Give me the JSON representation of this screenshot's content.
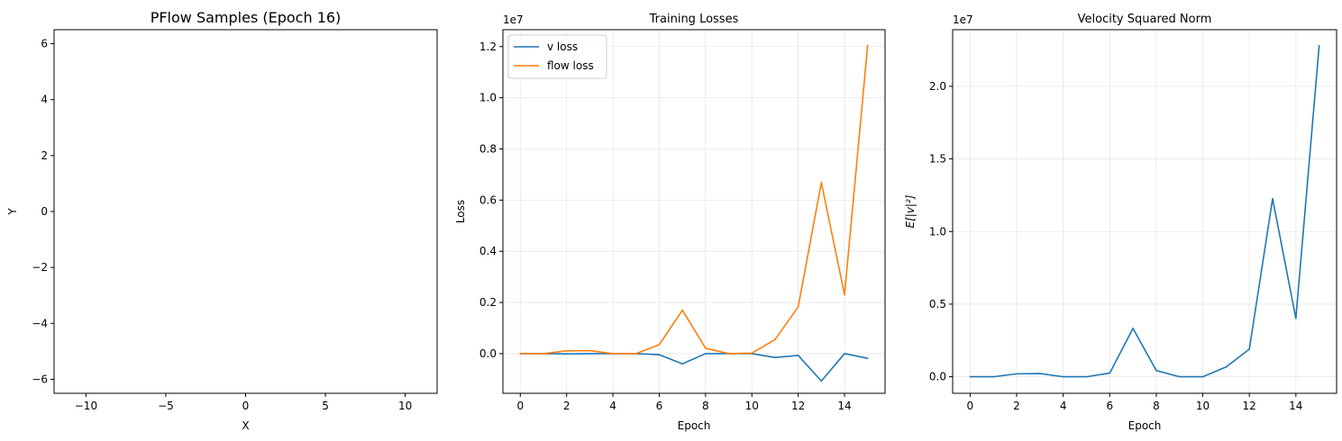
{
  "chart_data": [
    {
      "type": "scatter",
      "title": "PFlow Samples (Epoch 16)",
      "xlabel": "X",
      "ylabel": "Y",
      "xlim": [
        -12,
        12
      ],
      "ylim": [
        -6.5,
        6.5
      ],
      "xticks": [
        -10,
        -5,
        0,
        5,
        10
      ],
      "xtick_labels": [
        "−10",
        "−5",
        "0",
        "5",
        "10"
      ],
      "yticks": [
        -6,
        -4,
        -2,
        0,
        2,
        4,
        6
      ],
      "ytick_labels": [
        "−6",
        "−4",
        "−2",
        "0",
        "2",
        "4",
        "6"
      ],
      "grid": false,
      "series": []
    },
    {
      "type": "line",
      "title": "Training Losses",
      "xlabel": "Epoch",
      "ylabel": "Loss",
      "y_offset_label": "1e7",
      "x": [
        0,
        1,
        2,
        3,
        4,
        5,
        6,
        7,
        8,
        9,
        10,
        11,
        12,
        13,
        14,
        15
      ],
      "xlim": [
        -0.75,
        15.75
      ],
      "ylim": [
        -0.155,
        1.266
      ],
      "xticks": [
        0,
        2,
        4,
        6,
        8,
        10,
        12,
        14
      ],
      "xtick_labels": [
        "0",
        "2",
        "4",
        "6",
        "8",
        "10",
        "12",
        "14"
      ],
      "yticks": [
        0.0,
        0.2,
        0.4,
        0.6,
        0.8,
        1.0,
        1.2
      ],
      "ytick_labels": [
        "0.0",
        "0.2",
        "0.4",
        "0.6",
        "0.8",
        "1.0",
        "1.2"
      ],
      "grid": true,
      "legend": "top-left",
      "series": [
        {
          "name": "v loss",
          "color": "#1f77b4",
          "values": [
            0.0,
            0.0,
            -0.001,
            0.0,
            0.0,
            0.0,
            -0.004,
            -0.04,
            0.0,
            0.0,
            0.0,
            -0.015,
            -0.007,
            -0.107,
            0.0,
            -0.018
          ]
        },
        {
          "name": "flow loss",
          "color": "#ff7f0e",
          "values": [
            0.0,
            0.0,
            0.011,
            0.012,
            0.0,
            0.0,
            0.035,
            0.17,
            0.021,
            0.0,
            0.002,
            0.055,
            0.183,
            0.669,
            0.23,
            1.205
          ]
        }
      ]
    },
    {
      "type": "line",
      "title": "Velocity Squared Norm",
      "xlabel": "Epoch",
      "ylabel": "E[|v|²]",
      "y_offset_label": "1e7",
      "x": [
        0,
        1,
        2,
        3,
        4,
        5,
        6,
        7,
        8,
        9,
        10,
        11,
        12,
        13,
        14,
        15
      ],
      "xlim": [
        -0.75,
        15.75
      ],
      "ylim": [
        -0.114,
        2.39
      ],
      "xticks": [
        0,
        2,
        4,
        6,
        8,
        10,
        12,
        14
      ],
      "xtick_labels": [
        "0",
        "2",
        "4",
        "6",
        "8",
        "10",
        "12",
        "14"
      ],
      "yticks": [
        0.0,
        0.5,
        1.0,
        1.5,
        2.0
      ],
      "ytick_labels": [
        "0.0",
        "0.5",
        "1.0",
        "1.5",
        "2.0"
      ],
      "grid": true,
      "series": [
        {
          "name": "",
          "color": "#1f77b4",
          "values": [
            0.0,
            0.0,
            0.02,
            0.022,
            0.0,
            0.0,
            0.025,
            0.333,
            0.043,
            0.0,
            0.0,
            0.067,
            0.19,
            1.226,
            0.402,
            2.28
          ]
        }
      ]
    }
  ]
}
